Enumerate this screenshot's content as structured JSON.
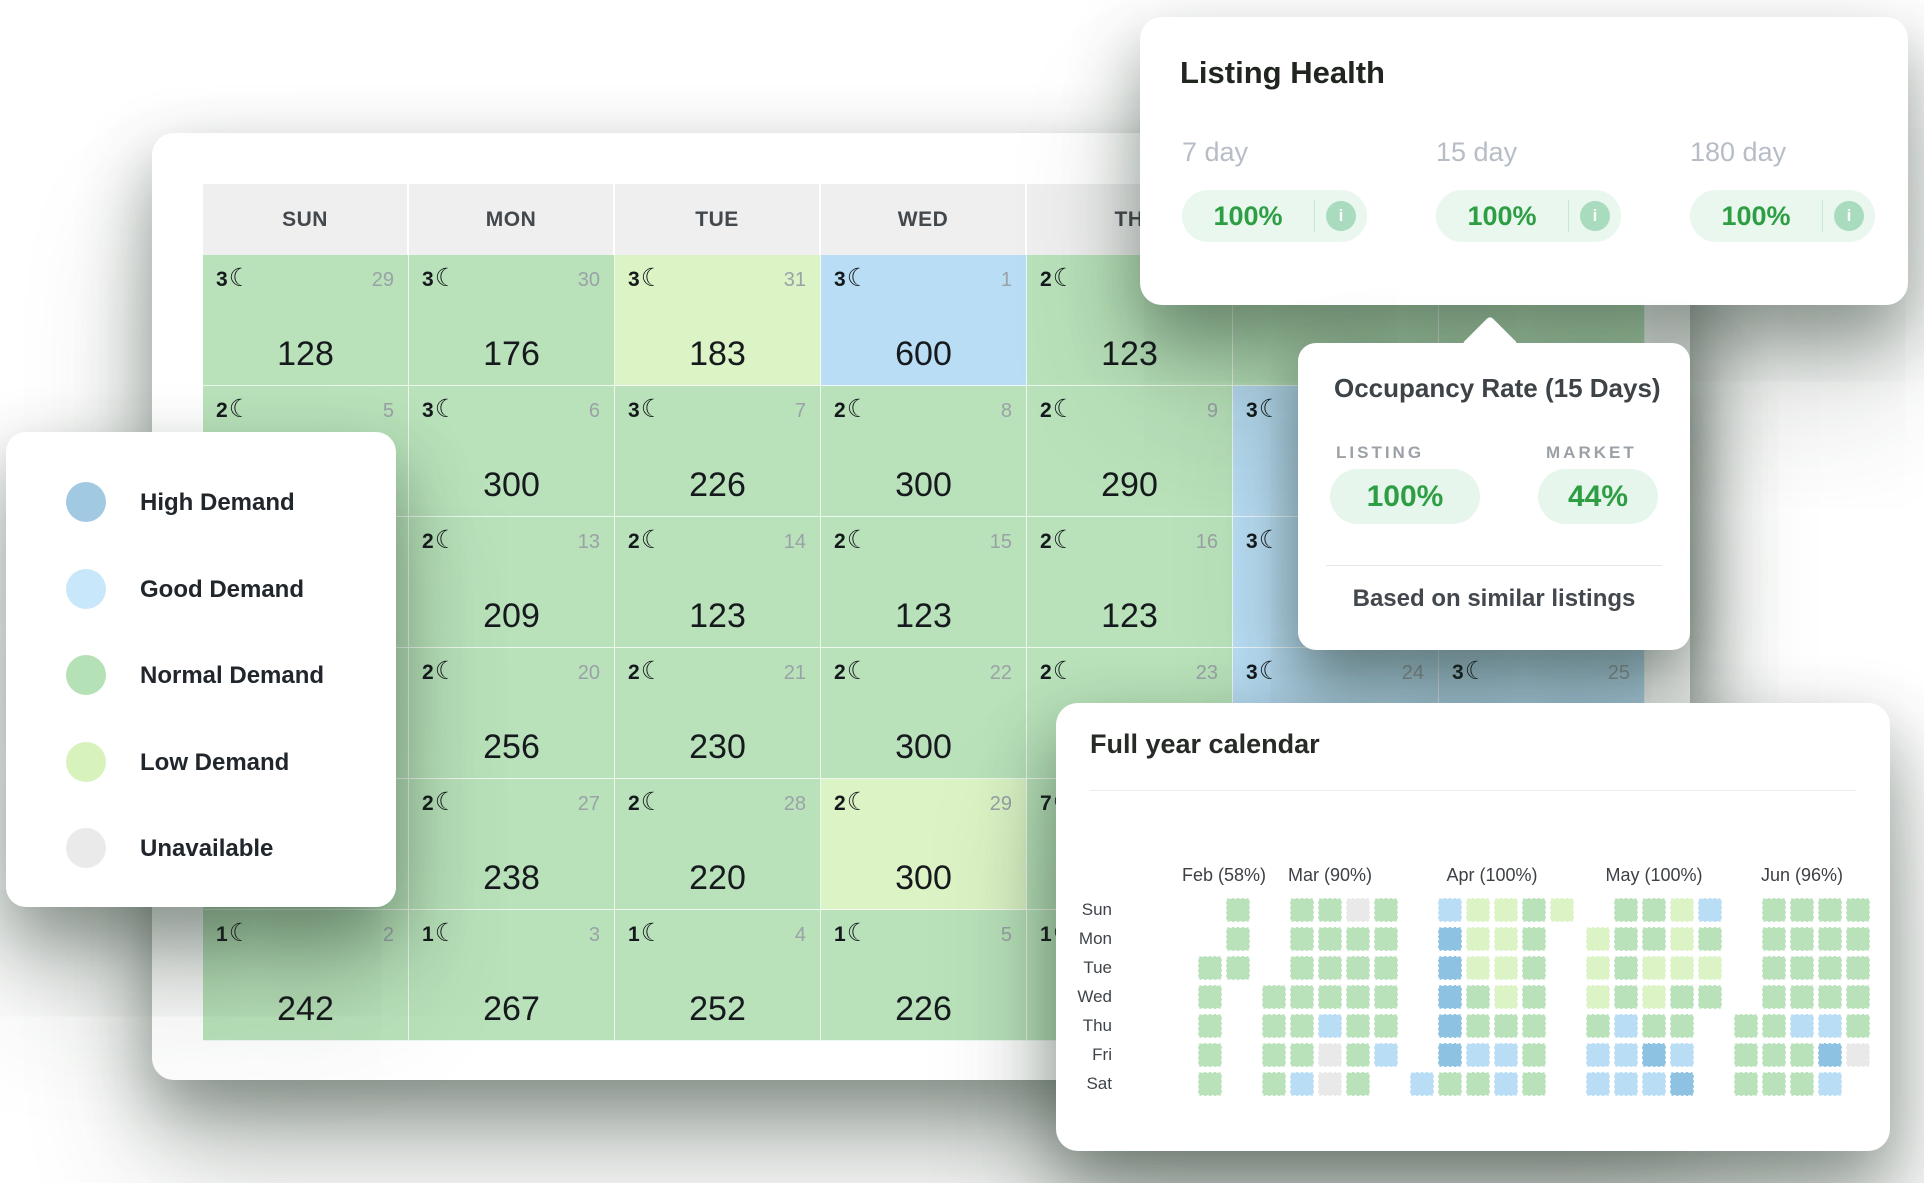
{
  "demand_colors": {
    "normal": "#b9e2ba",
    "low": "#dcf3c5",
    "good": "#b9ddf4",
    "high": "#8ec2e2",
    "unavailable": "#e9e9e9"
  },
  "legend": {
    "items": [
      {
        "label": "High Demand",
        "color": "#a2c9e2"
      },
      {
        "label": "Good Demand",
        "color": "#c9e7fa"
      },
      {
        "label": "Normal Demand",
        "color": "#b5e1b7"
      },
      {
        "label": "Low Demand",
        "color": "#d8f2bb"
      },
      {
        "label": "Unavailable",
        "color": "#eaeaea"
      }
    ]
  },
  "calendar": {
    "moon_icon": "☾",
    "day_headers": [
      "SUN",
      "MON",
      "TUE",
      "WED",
      "TH",
      "FRI",
      "SAT"
    ],
    "rows": [
      [
        {
          "m": "3",
          "d": "29",
          "p": "128",
          "lv": "normal"
        },
        {
          "m": "3",
          "d": "30",
          "p": "176",
          "lv": "normal"
        },
        {
          "m": "3",
          "d": "31",
          "p": "183",
          "lv": "low"
        },
        {
          "m": "3",
          "d": "1",
          "p": "600",
          "lv": "good"
        },
        {
          "m": "2",
          "d": "",
          "p": "123",
          "lv": "normal"
        },
        {
          "m": "",
          "d": "",
          "p": "",
          "lv": "normal"
        },
        {
          "m": "",
          "d": "",
          "p": "",
          "lv": "normal"
        }
      ],
      [
        {
          "m": "2",
          "d": "5",
          "p": "",
          "lv": "normal"
        },
        {
          "m": "3",
          "d": "6",
          "p": "300",
          "lv": "normal"
        },
        {
          "m": "3",
          "d": "7",
          "p": "226",
          "lv": "normal"
        },
        {
          "m": "2",
          "d": "8",
          "p": "300",
          "lv": "normal"
        },
        {
          "m": "2",
          "d": "9",
          "p": "290",
          "lv": "normal"
        },
        {
          "m": "3",
          "d": "",
          "p": "",
          "lv": "good"
        },
        {
          "m": "",
          "d": "",
          "p": "",
          "lv": "good"
        }
      ],
      [
        {
          "m": "",
          "d": "",
          "p": "",
          "lv": "normal"
        },
        {
          "m": "2",
          "d": "13",
          "p": "209",
          "lv": "normal"
        },
        {
          "m": "2",
          "d": "14",
          "p": "123",
          "lv": "normal"
        },
        {
          "m": "2",
          "d": "15",
          "p": "123",
          "lv": "normal"
        },
        {
          "m": "2",
          "d": "16",
          "p": "123",
          "lv": "normal"
        },
        {
          "m": "3",
          "d": "",
          "p": "",
          "lv": "good"
        },
        {
          "m": "",
          "d": "",
          "p": "",
          "lv": "good"
        }
      ],
      [
        {
          "m": "",
          "d": "",
          "p": "",
          "lv": "normal"
        },
        {
          "m": "2",
          "d": "20",
          "p": "256",
          "lv": "normal"
        },
        {
          "m": "2",
          "d": "21",
          "p": "230",
          "lv": "normal"
        },
        {
          "m": "2",
          "d": "22",
          "p": "300",
          "lv": "normal"
        },
        {
          "m": "2",
          "d": "23",
          "p": "",
          "lv": "normal"
        },
        {
          "m": "3",
          "d": "24",
          "p": "",
          "lv": "good"
        },
        {
          "m": "3",
          "d": "25",
          "p": "",
          "lv": "good"
        }
      ],
      [
        {
          "m": "",
          "d": "",
          "p": "",
          "lv": "normal"
        },
        {
          "m": "2",
          "d": "27",
          "p": "238",
          "lv": "normal"
        },
        {
          "m": "2",
          "d": "28",
          "p": "220",
          "lv": "normal"
        },
        {
          "m": "2",
          "d": "29",
          "p": "300",
          "lv": "low"
        },
        {
          "m": "7",
          "d": "",
          "p": "",
          "lv": "normal"
        },
        {
          "m": "",
          "d": "",
          "p": "",
          "lv": "normal"
        },
        {
          "m": "",
          "d": "",
          "p": "",
          "lv": "normal"
        }
      ],
      [
        {
          "m": "1",
          "d": "2",
          "p": "242",
          "lv": "normal"
        },
        {
          "m": "1",
          "d": "3",
          "p": "267",
          "lv": "normal"
        },
        {
          "m": "1",
          "d": "4",
          "p": "252",
          "lv": "normal"
        },
        {
          "m": "1",
          "d": "5",
          "p": "226",
          "lv": "normal"
        },
        {
          "m": "1",
          "d": "",
          "p": "",
          "lv": "normal"
        },
        {
          "m": "",
          "d": "",
          "p": "",
          "lv": "normal"
        },
        {
          "m": "",
          "d": "",
          "p": "",
          "lv": "normal"
        }
      ]
    ]
  },
  "listing_health": {
    "title": "Listing Health",
    "info_icon": "i",
    "periods": [
      {
        "label": "7 day",
        "value": "100%"
      },
      {
        "label": "15 day",
        "value": "100%"
      },
      {
        "label": "180 day",
        "value": "100%"
      }
    ]
  },
  "occupancy": {
    "title": "Occupancy Rate (15 Days)",
    "listing_label": "LISTING",
    "listing_value": "100%",
    "market_label": "MARKET",
    "market_value": "44%",
    "footnote": "Based on similar listings"
  },
  "full_year": {
    "title": "Full year calendar",
    "day_labels": [
      "Sun",
      "Mon",
      "Tue",
      "Wed",
      "Thu",
      "Fri",
      "Sat"
    ],
    "months": [
      {
        "label": "Feb (58%)",
        "weeks": [
          [
            null,
            null,
            "N",
            "N",
            "N",
            "N",
            "N"
          ],
          [
            "N",
            "N",
            "N",
            null,
            null,
            null,
            null
          ]
        ]
      },
      {
        "label": "Mar (90%)",
        "weeks": [
          [
            null,
            null,
            null,
            "N",
            "N",
            "N",
            "N"
          ],
          [
            "N",
            "N",
            "N",
            "N",
            "N",
            "N",
            "G"
          ],
          [
            "N",
            "N",
            "N",
            "N",
            "G",
            "U",
            "U"
          ],
          [
            "U",
            "N",
            "N",
            "N",
            "N",
            "N",
            "N"
          ],
          [
            "N",
            "N",
            "N",
            "N",
            "N",
            "G",
            null
          ]
        ]
      },
      {
        "label": "Apr (100%)",
        "weeks": [
          [
            null,
            null,
            null,
            null,
            null,
            null,
            "G"
          ],
          [
            "G",
            "H",
            "H",
            "H",
            "H",
            "H",
            "N"
          ],
          [
            "L",
            "L",
            "L",
            "N",
            "N",
            "G",
            "N"
          ],
          [
            "L",
            "L",
            "L",
            "L",
            "N",
            "G",
            "G"
          ],
          [
            "N",
            "N",
            "N",
            "N",
            "N",
            "N",
            "N"
          ],
          [
            "L",
            null,
            null,
            null,
            null,
            null,
            null
          ]
        ]
      },
      {
        "label": "May (100%)",
        "weeks": [
          [
            null,
            "L",
            "L",
            "L",
            "N",
            "G",
            "G"
          ],
          [
            "N",
            "N",
            "N",
            "N",
            "G",
            "G",
            "G"
          ],
          [
            "N",
            "N",
            "L",
            "L",
            "N",
            "H",
            "G"
          ],
          [
            "L",
            "L",
            "L",
            "N",
            "N",
            "G",
            "H"
          ],
          [
            "G",
            "N",
            "L",
            "N",
            null,
            null,
            null
          ]
        ]
      },
      {
        "label": "Jun (96%)",
        "weeks": [
          [
            null,
            null,
            null,
            null,
            "N",
            "N",
            "N"
          ],
          [
            "N",
            "N",
            "N",
            "N",
            "N",
            "N",
            "N"
          ],
          [
            "N",
            "N",
            "N",
            "N",
            "G",
            "N",
            "N"
          ],
          [
            "N",
            "N",
            "N",
            "N",
            "G",
            "H",
            "G"
          ],
          [
            "N",
            "N",
            "N",
            "N",
            "N",
            "U",
            null
          ]
        ]
      }
    ]
  }
}
